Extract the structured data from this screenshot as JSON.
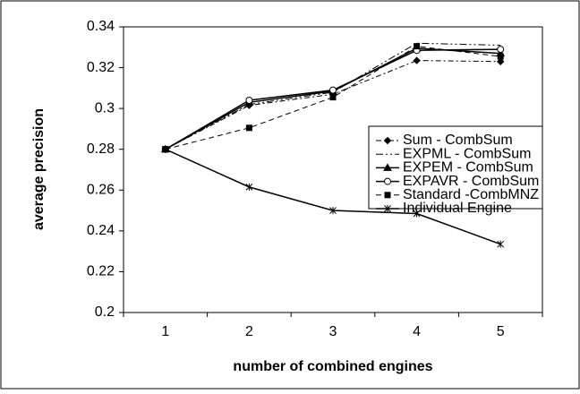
{
  "chart_data": {
    "type": "line",
    "x_label": "number of combined engines",
    "y_label": "average precision",
    "categories": [
      "1",
      "2",
      "3",
      "4",
      "5"
    ],
    "ylim": [
      0.2,
      0.34
    ],
    "yticks": [
      0.2,
      0.22,
      0.24,
      0.26,
      0.28,
      0.3,
      0.32,
      0.34
    ],
    "grid": false,
    "legend": "right",
    "series": [
      {
        "name": "Sum - CombSum",
        "color": "#000000",
        "marker": "diamond",
        "dash": "6 3 2 3",
        "values": [
          0.28,
          0.3015,
          0.307,
          0.3235,
          0.323
        ]
      },
      {
        "name": "EXPML - CombSum",
        "color": "#000000",
        "marker": "none",
        "dash": "8 3 2 3 2 3",
        "values": [
          0.28,
          0.302,
          0.308,
          0.332,
          0.331
        ]
      },
      {
        "name": "EXPEM - CombSum",
        "color": "#000000",
        "marker": "triangle",
        "dash": "none",
        "values": [
          0.28,
          0.303,
          0.3085,
          0.3295,
          0.327
        ]
      },
      {
        "name": "EXPAVR - CombSum",
        "color": "#000000",
        "marker": "circle",
        "dash": "none",
        "values": [
          0.28,
          0.304,
          0.309,
          0.3285,
          0.329
        ]
      },
      {
        "name": "Standard -CombMNZ",
        "color": "#000000",
        "marker": "square",
        "dash": "6 4",
        "values": [
          0.28,
          0.2905,
          0.3055,
          0.3305,
          0.3255
        ]
      },
      {
        "name": "Individual Engine",
        "color": "#000000",
        "marker": "star",
        "dash": "none",
        "values": [
          0.28,
          0.2615,
          0.25,
          0.2485,
          0.2335
        ]
      }
    ]
  }
}
